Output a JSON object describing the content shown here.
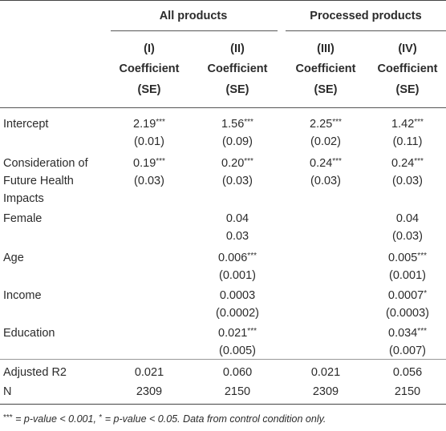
{
  "groups": [
    "All products",
    "Processed products"
  ],
  "columns": [
    {
      "num": "(I)",
      "label": "Coefficient",
      "se": "(SE)"
    },
    {
      "num": "(II)",
      "label": "Coefficient",
      "se": "(SE)"
    },
    {
      "num": "(III)",
      "label": "Coefficient",
      "se": "(SE)"
    },
    {
      "num": "(IV)",
      "label": "Coefficient",
      "se": "(SE)"
    }
  ],
  "rows": [
    {
      "label": [
        "Intercept"
      ],
      "coef": [
        "2.19",
        "1.56",
        "2.25",
        "1.42"
      ],
      "stars": [
        "***",
        "***",
        "***",
        "***"
      ],
      "se": [
        "(0.01)",
        "(0.09)",
        "(0.02)",
        "(0.11)"
      ]
    },
    {
      "label": [
        "Consideration of",
        "Future Health",
        "Impacts"
      ],
      "coef": [
        "0.19",
        "0.20",
        "0.24",
        "0.24"
      ],
      "stars": [
        "***",
        "***",
        "***",
        "***"
      ],
      "se": [
        "(0.03)",
        "(0.03)",
        "(0.03)",
        "(0.03)"
      ]
    },
    {
      "label": [
        "Female"
      ],
      "coef": [
        "",
        "0.04",
        "",
        "0.04"
      ],
      "stars": [
        "",
        "",
        "",
        ""
      ],
      "se": [
        "",
        "0.03",
        "",
        "(0.03)"
      ]
    },
    {
      "label": [
        "Age"
      ],
      "coef": [
        "",
        "0.006",
        "",
        "0.005"
      ],
      "stars": [
        "",
        "***",
        "",
        "***"
      ],
      "se": [
        "",
        "(0.001)",
        "",
        "(0.001)"
      ]
    },
    {
      "label": [
        "Income"
      ],
      "coef": [
        "",
        "0.0003",
        "",
        "0.0007"
      ],
      "stars": [
        "",
        "",
        "",
        "*"
      ],
      "se": [
        "",
        "(0.0002)",
        "",
        "(0.0003)"
      ]
    },
    {
      "label": [
        "Education"
      ],
      "coef": [
        "",
        "0.021",
        "",
        "0.034"
      ],
      "stars": [
        "",
        "***",
        "",
        "***"
      ],
      "se": [
        "",
        "(0.005)",
        "",
        "(0.007)"
      ]
    }
  ],
  "stats": [
    {
      "label": "Adjusted R2",
      "values": [
        "0.021",
        "0.060",
        "0.021",
        "0.056"
      ]
    },
    {
      "label": "N",
      "values": [
        "2309",
        "2150",
        "2309",
        "2150"
      ]
    }
  ],
  "note": {
    "stars1": "***",
    "text1": " = p-value < 0.001, ",
    "stars2": "*",
    "text2": " = p-value < 0.05. Data from control condition only."
  }
}
